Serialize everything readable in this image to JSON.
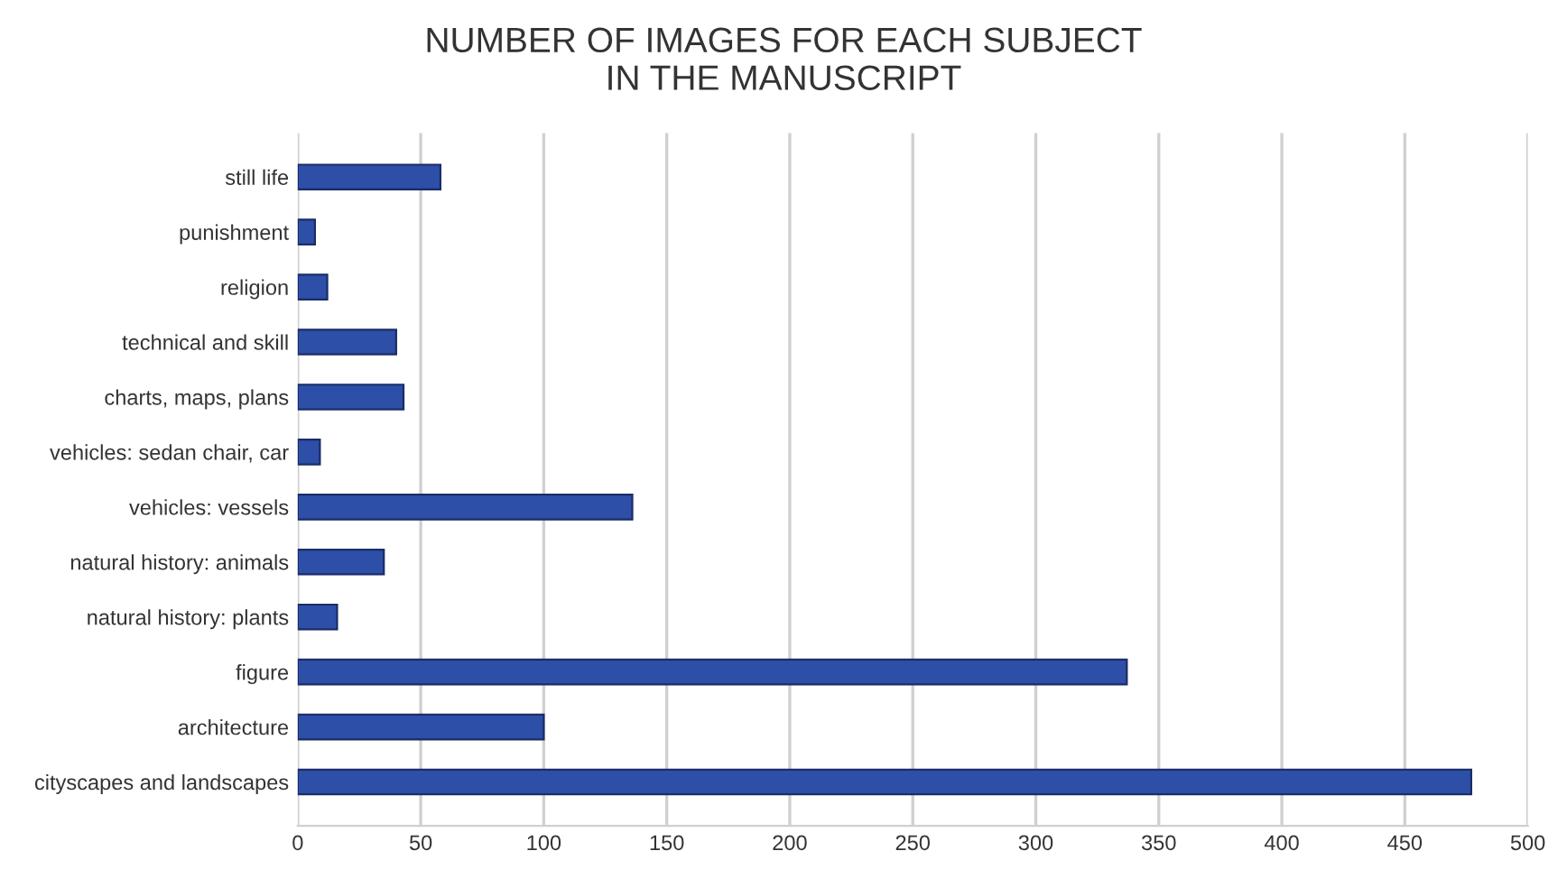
{
  "chart_data": {
    "type": "bar",
    "orientation": "horizontal",
    "title": "NUMBER OF IMAGES FOR EACH SUBJECT\nIN THE MANUSCRIPT",
    "categories": [
      "still life",
      "punishment",
      "religion",
      "technical and skill",
      "charts, maps, plans",
      "vehicles: sedan chair, car",
      "vehicles: vessels",
      "natural history: animals",
      "natural history: plants",
      "figure",
      "architecture",
      "cityscapes and landscapes"
    ],
    "values": [
      58,
      7,
      12,
      40,
      43,
      9,
      136,
      35,
      16,
      337,
      100,
      477
    ],
    "color": "#2e4fa8",
    "xlim": [
      0,
      500
    ],
    "xticks": [
      0,
      50,
      100,
      150,
      200,
      250,
      300,
      350,
      400,
      450,
      500
    ],
    "grid": "x",
    "legend": false
  }
}
